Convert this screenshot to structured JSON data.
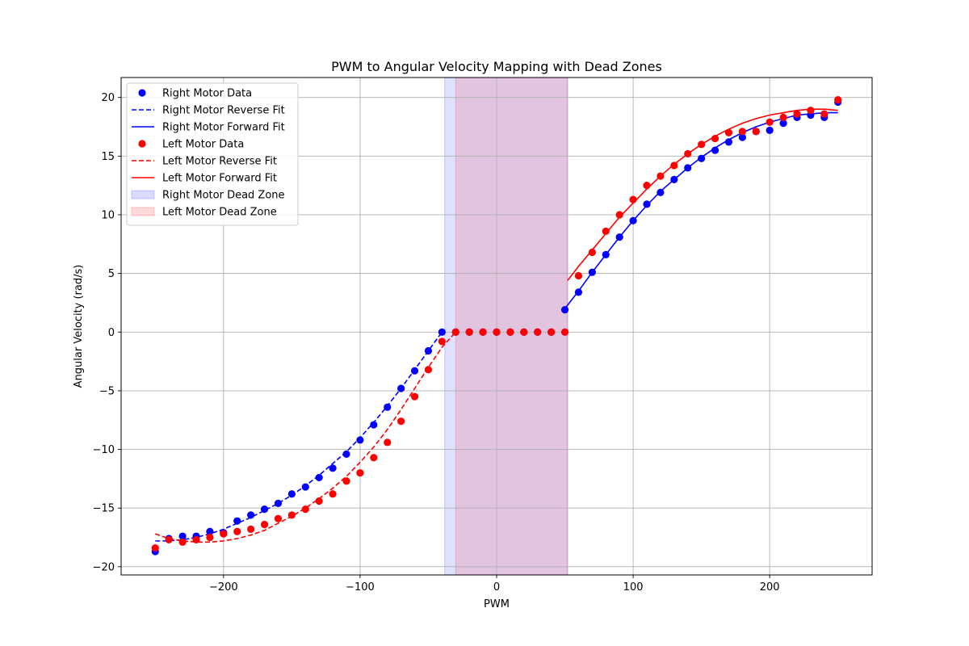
{
  "chart_data": {
    "type": "scatter",
    "title": "PWM to Angular Velocity Mapping with Dead Zones",
    "xlabel": "PWM",
    "ylabel": "Angular Velocity (rad/s)",
    "xlim": [
      -275,
      275
    ],
    "ylim": [
      -20.7,
      21.7
    ],
    "xticks": [
      -200,
      -100,
      0,
      100,
      200
    ],
    "yticks": [
      -20,
      -15,
      -10,
      -5,
      0,
      5,
      10,
      15,
      20
    ],
    "xtick_labels": [
      "−200",
      "−100",
      "0",
      "100",
      "200"
    ],
    "ytick_labels": [
      "−20",
      "−15",
      "−10",
      "−5",
      "0",
      "5",
      "10",
      "15",
      "20"
    ],
    "grid": true,
    "legend_position": "top-left",
    "dead_zones": [
      {
        "name": "Right Motor Dead Zone",
        "x_start": -38,
        "x_end": 52,
        "color": "#0000ff",
        "alpha": 0.12
      },
      {
        "name": "Left Motor Dead Zone",
        "x_start": -30,
        "x_end": 52,
        "color": "#ff0000",
        "alpha": 0.12
      }
    ],
    "scatter_series": [
      {
        "name": "Right Motor Data",
        "color": "#0000ff",
        "x": [
          -250,
          -240,
          -230,
          -220,
          -210,
          -200,
          -190,
          -180,
          -170,
          -160,
          -150,
          -140,
          -130,
          -120,
          -110,
          -100,
          -90,
          -80,
          -70,
          -60,
          -50,
          -40,
          -30,
          -20,
          -10,
          0,
          10,
          20,
          30,
          40,
          50,
          60,
          70,
          80,
          90,
          100,
          110,
          120,
          130,
          140,
          150,
          160,
          170,
          180,
          190,
          200,
          210,
          220,
          230,
          240,
          250
        ],
        "y": [
          -18.7,
          -17.6,
          -17.4,
          -17.4,
          -17.0,
          -17.1,
          -16.1,
          -15.6,
          -15.1,
          -14.6,
          -13.8,
          -13.2,
          -12.4,
          -11.6,
          -10.4,
          -9.2,
          -7.9,
          -6.4,
          -4.8,
          -3.3,
          -1.6,
          0,
          0,
          0,
          0,
          0,
          0,
          0,
          0,
          0,
          1.9,
          3.4,
          5.1,
          6.6,
          8.1,
          9.5,
          10.9,
          11.9,
          13.0,
          14.0,
          14.8,
          15.5,
          16.2,
          16.6,
          17.1,
          17.2,
          17.8,
          18.3,
          18.5,
          18.3,
          19.6
        ]
      },
      {
        "name": "Left Motor Data",
        "color": "#ff0000",
        "x": [
          -250,
          -240,
          -230,
          -220,
          -210,
          -200,
          -190,
          -180,
          -170,
          -160,
          -150,
          -140,
          -130,
          -120,
          -110,
          -100,
          -90,
          -80,
          -70,
          -60,
          -50,
          -40,
          -30,
          -20,
          -10,
          0,
          10,
          20,
          30,
          40,
          50,
          60,
          70,
          80,
          90,
          100,
          110,
          120,
          130,
          140,
          150,
          160,
          170,
          180,
          190,
          200,
          210,
          220,
          230,
          240,
          250
        ],
        "y": [
          -18.4,
          -17.7,
          -17.9,
          -17.7,
          -17.5,
          -17.2,
          -17.0,
          -16.8,
          -16.4,
          -15.9,
          -15.6,
          -15.1,
          -14.4,
          -13.8,
          -12.7,
          -12.0,
          -10.7,
          -9.4,
          -7.6,
          -5.5,
          -3.2,
          -0.8,
          0,
          0,
          0,
          0,
          0,
          0,
          0,
          0,
          0,
          4.8,
          6.8,
          8.6,
          10.0,
          11.3,
          12.5,
          13.3,
          14.2,
          15.2,
          16.0,
          16.5,
          17.0,
          17.1,
          17.1,
          17.9,
          18.3,
          18.6,
          18.9,
          18.6,
          19.8
        ]
      }
    ],
    "fit_series": [
      {
        "name": "Right Motor Reverse Fit",
        "color": "#0000ff",
        "style": "dashed",
        "x": [
          -250,
          -240,
          -230,
          -220,
          -210,
          -200,
          -190,
          -180,
          -170,
          -160,
          -150,
          -140,
          -130,
          -120,
          -110,
          -100,
          -90,
          -80,
          -70,
          -60,
          -50,
          -40
        ],
        "y": [
          -17.8,
          -17.8,
          -17.7,
          -17.5,
          -17.2,
          -16.8,
          -16.3,
          -15.8,
          -15.2,
          -14.6,
          -13.9,
          -13.1,
          -12.2,
          -11.2,
          -10.2,
          -9.0,
          -7.7,
          -6.3,
          -4.8,
          -3.2,
          -1.6,
          0
        ]
      },
      {
        "name": "Right Motor Forward Fit",
        "color": "#0000ff",
        "style": "solid",
        "x": [
          50,
          60,
          70,
          80,
          90,
          100,
          110,
          120,
          130,
          140,
          150,
          160,
          170,
          180,
          190,
          200,
          210,
          220,
          230,
          240,
          250
        ],
        "y": [
          2.0,
          3.5,
          5.1,
          6.6,
          8.1,
          9.5,
          10.8,
          12.0,
          13.0,
          14.0,
          14.9,
          15.7,
          16.4,
          17.0,
          17.5,
          17.9,
          18.2,
          18.5,
          18.6,
          18.7,
          18.7
        ]
      },
      {
        "name": "Left Motor Reverse Fit",
        "color": "#ff0000",
        "style": "dashed",
        "x": [
          -250,
          -240,
          -230,
          -220,
          -210,
          -200,
          -190,
          -180,
          -170,
          -160,
          -150,
          -140,
          -130,
          -120,
          -110,
          -100,
          -90,
          -80,
          -70,
          -60,
          -50,
          -40,
          -30
        ],
        "y": [
          -17.2,
          -17.6,
          -17.8,
          -17.9,
          -17.9,
          -17.8,
          -17.6,
          -17.3,
          -16.9,
          -16.3,
          -15.7,
          -15.0,
          -14.2,
          -13.3,
          -12.3,
          -11.1,
          -9.8,
          -8.3,
          -6.6,
          -4.8,
          -3.0,
          -1.3,
          0
        ]
      },
      {
        "name": "Left Motor Forward Fit",
        "color": "#ff0000",
        "style": "solid",
        "x": [
          52,
          60,
          70,
          80,
          90,
          100,
          110,
          120,
          130,
          140,
          150,
          160,
          170,
          180,
          190,
          200,
          210,
          220,
          230,
          240,
          250
        ],
        "y": [
          4.4,
          5.6,
          7.0,
          8.4,
          9.8,
          11.0,
          12.2,
          13.3,
          14.3,
          15.2,
          16.0,
          16.7,
          17.3,
          17.8,
          18.2,
          18.5,
          18.7,
          18.9,
          19.0,
          19.0,
          18.9
        ]
      }
    ],
    "legend": [
      {
        "label": "Right Motor Data",
        "kind": "marker",
        "color": "#0000ff"
      },
      {
        "label": "Right Motor Reverse Fit",
        "kind": "dashed",
        "color": "#0000ff"
      },
      {
        "label": "Right Motor Forward Fit",
        "kind": "solid",
        "color": "#0000ff"
      },
      {
        "label": "Left Motor Data",
        "kind": "marker",
        "color": "#ff0000"
      },
      {
        "label": "Left Motor Reverse Fit",
        "kind": "dashed",
        "color": "#ff0000"
      },
      {
        "label": "Left Motor Forward Fit",
        "kind": "solid",
        "color": "#ff0000"
      },
      {
        "label": "Right Motor Dead Zone",
        "kind": "patch",
        "color": "#0000ff"
      },
      {
        "label": "Left Motor Dead Zone",
        "kind": "patch",
        "color": "#ff0000"
      }
    ]
  }
}
